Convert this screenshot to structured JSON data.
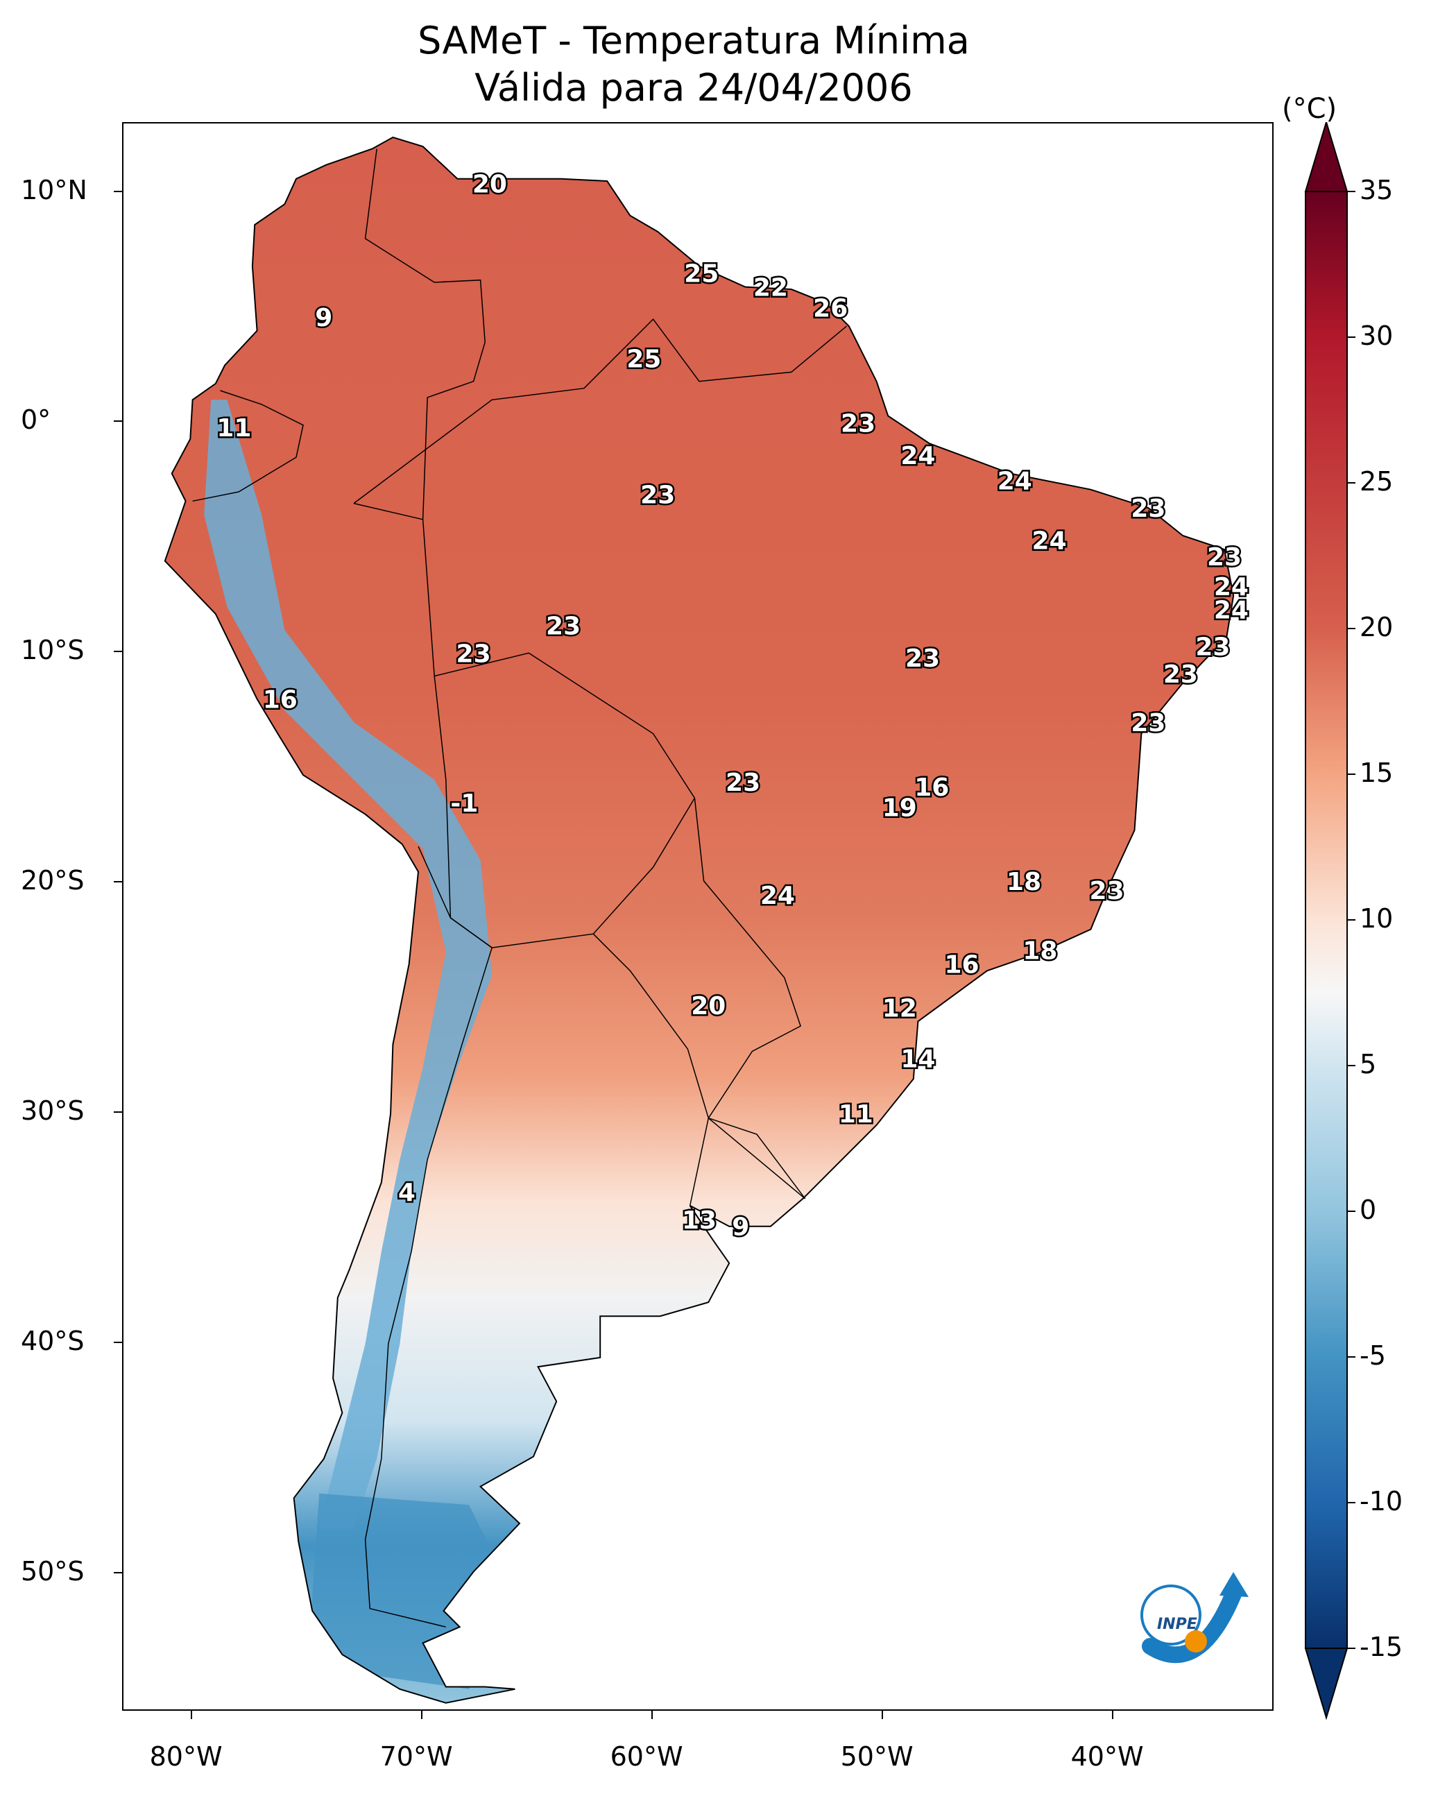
{
  "title": {
    "line1": "SAMeT - Temperatura Mínima",
    "line2": "Válida para 24/04/2006"
  },
  "map": {
    "lon_range": [
      -83,
      -33
    ],
    "lat_range": [
      -56,
      13
    ],
    "lat_ticks": [
      {
        "value": 10,
        "label": "10°N"
      },
      {
        "value": 0,
        "label": "0°"
      },
      {
        "value": -10,
        "label": "10°S"
      },
      {
        "value": -20,
        "label": "20°S"
      },
      {
        "value": -30,
        "label": "30°S"
      },
      {
        "value": -40,
        "label": "40°S"
      },
      {
        "value": -50,
        "label": "50°S"
      }
    ],
    "lon_ticks": [
      {
        "value": -80,
        "label": "80°W"
      },
      {
        "value": -70,
        "label": "70°W"
      },
      {
        "value": -60,
        "label": "60°W"
      },
      {
        "value": -50,
        "label": "50°W"
      },
      {
        "value": -40,
        "label": "40°W"
      }
    ],
    "point_labels": [
      {
        "text": "20",
        "lon": -67.1,
        "lat": 10.4
      },
      {
        "text": "25",
        "lon": -57.9,
        "lat": 6.5
      },
      {
        "text": "22",
        "lon": -54.9,
        "lat": 5.9
      },
      {
        "text": "26",
        "lon": -52.3,
        "lat": 5.0
      },
      {
        "text": "9",
        "lon": -74.3,
        "lat": 4.6
      },
      {
        "text": "25",
        "lon": -60.4,
        "lat": 2.8
      },
      {
        "text": "23",
        "lon": -51.1,
        "lat": 0.0
      },
      {
        "text": "11",
        "lon": -78.2,
        "lat": -0.2
      },
      {
        "text": "24",
        "lon": -48.5,
        "lat": -1.4
      },
      {
        "text": "24",
        "lon": -44.3,
        "lat": -2.5
      },
      {
        "text": "23",
        "lon": -59.8,
        "lat": -3.1
      },
      {
        "text": "23",
        "lon": -38.5,
        "lat": -3.7
      },
      {
        "text": "24",
        "lon": -42.8,
        "lat": -5.1
      },
      {
        "text": "23",
        "lon": -35.2,
        "lat": -5.8
      },
      {
        "text": "24",
        "lon": -34.9,
        "lat": -7.1
      },
      {
        "text": "24",
        "lon": -34.9,
        "lat": -8.1
      },
      {
        "text": "23",
        "lon": -63.9,
        "lat": -8.8
      },
      {
        "text": "23",
        "lon": -35.7,
        "lat": -9.7
      },
      {
        "text": "23",
        "lon": -67.8,
        "lat": -10.0
      },
      {
        "text": "23",
        "lon": -48.3,
        "lat": -10.2
      },
      {
        "text": "23",
        "lon": -37.1,
        "lat": -10.9
      },
      {
        "text": "16",
        "lon": -76.2,
        "lat": -12.0
      },
      {
        "text": "23",
        "lon": -38.5,
        "lat": -13.0
      },
      {
        "text": "23",
        "lon": -56.1,
        "lat": -15.6
      },
      {
        "text": "16",
        "lon": -47.9,
        "lat": -15.8
      },
      {
        "text": "19",
        "lon": -49.3,
        "lat": -16.7
      },
      {
        "text": "-1",
        "lon": -68.2,
        "lat": -16.5
      },
      {
        "text": "18",
        "lon": -43.9,
        "lat": -19.9
      },
      {
        "text": "23",
        "lon": -40.3,
        "lat": -20.3
      },
      {
        "text": "24",
        "lon": -54.6,
        "lat": -20.5
      },
      {
        "text": "18",
        "lon": -43.2,
        "lat": -22.9
      },
      {
        "text": "16",
        "lon": -46.6,
        "lat": -23.5
      },
      {
        "text": "20",
        "lon": -57.6,
        "lat": -25.3
      },
      {
        "text": "12",
        "lon": -49.3,
        "lat": -25.4
      },
      {
        "text": "14",
        "lon": -48.5,
        "lat": -27.6
      },
      {
        "text": "11",
        "lon": -51.2,
        "lat": -30.0
      },
      {
        "text": "4",
        "lon": -70.7,
        "lat": -33.4
      },
      {
        "text": "13",
        "lon": -58.0,
        "lat": -34.6
      },
      {
        "text": "9",
        "lon": -56.2,
        "lat": -34.9
      }
    ]
  },
  "colorbar": {
    "unit": "(°C)",
    "min": -15,
    "max": 35,
    "ticks": [
      "35",
      "30",
      "25",
      "20",
      "15",
      "10",
      "5",
      "0",
      "-5",
      "-10",
      "-15"
    ],
    "colors": {
      "cold_dark": "#08306b",
      "cold": "#2166ac",
      "cool": "#92c5de",
      "neutral": "#f7f7f7",
      "warm": "#f4a582",
      "hot": "#d6604d",
      "hot_dark": "#67001f"
    }
  },
  "logo": {
    "text": "INPE",
    "colors": {
      "blue": "#1a7cc1",
      "orange": "#f39200"
    }
  }
}
